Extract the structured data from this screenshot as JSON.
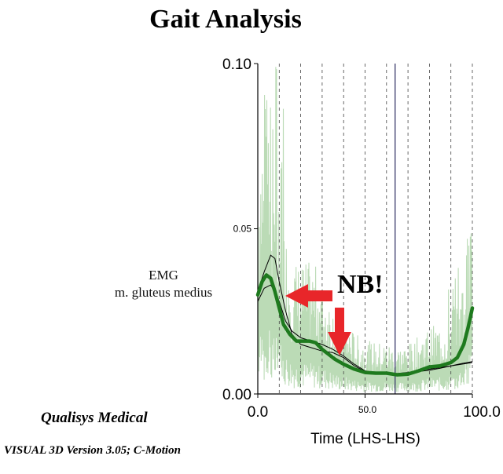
{
  "title": "Gait Analysis",
  "annotation": "NB!",
  "y_label_lines": [
    "EMG",
    "m. gluteus medius"
  ],
  "footer": {
    "line1": "Qualisys Medical",
    "line2": "VISUAL 3D Version 3.05; C-Motion"
  },
  "colors": {
    "mean": "#1e7a1e",
    "raw": "#b7d9b2",
    "reference": "#000000",
    "arrow": "#e8262a",
    "event_line": "#3a3a6a"
  },
  "chart_data": {
    "type": "line",
    "title": "Gait Analysis",
    "xlabel": "Time (LHS-LHS)",
    "ylabel": "EMG m. gluteus medius",
    "xlim": [
      0,
      100
    ],
    "ylim": [
      0,
      0.1
    ],
    "x_ticks": [
      0,
      50,
      100
    ],
    "x_tick_labels": [
      "0.0",
      "50.0",
      "100.0"
    ],
    "y_ticks": [
      0,
      0.05,
      0.1
    ],
    "y_tick_labels": [
      "0.00",
      "0.05",
      "0.10"
    ],
    "dashed_verticals": [
      10,
      20,
      30,
      40,
      50,
      60,
      70,
      80,
      90,
      100
    ],
    "event_line_x": 64,
    "series": [
      {
        "name": "mean EMG",
        "x": [
          0,
          2,
          4,
          6,
          8,
          10,
          12,
          15,
          18,
          21,
          24,
          27,
          30,
          33,
          36,
          40,
          45,
          50,
          55,
          60,
          65,
          70,
          75,
          80,
          85,
          90,
          93,
          96,
          98,
          100
        ],
        "values": [
          0.03,
          0.034,
          0.036,
          0.035,
          0.031,
          0.026,
          0.021,
          0.018,
          0.016,
          0.016,
          0.016,
          0.0155,
          0.0135,
          0.012,
          0.0105,
          0.009,
          0.0075,
          0.0065,
          0.0063,
          0.0063,
          0.0058,
          0.006,
          0.007,
          0.0082,
          0.0085,
          0.0095,
          0.011,
          0.015,
          0.02,
          0.026
        ]
      },
      {
        "name": "reference",
        "x": [
          0,
          3,
          6,
          8,
          10,
          13,
          16,
          20,
          25,
          30,
          35,
          40,
          45,
          50,
          55,
          60,
          65,
          70,
          75,
          80,
          85,
          90,
          95,
          100
        ],
        "values": [
          0.031,
          0.037,
          0.042,
          0.041,
          0.034,
          0.025,
          0.018,
          0.015,
          0.014,
          0.013,
          0.0125,
          0.011,
          0.0085,
          0.0068,
          0.0065,
          0.0062,
          0.0062,
          0.0065,
          0.007,
          0.0075,
          0.008,
          0.0085,
          0.009,
          0.0095
        ]
      },
      {
        "name": "reference lower",
        "x": [
          0,
          3,
          6,
          8,
          10,
          13,
          16,
          20,
          25,
          30,
          35,
          40,
          45,
          50,
          55,
          60,
          65,
          70,
          75,
          80,
          85,
          90,
          95,
          100
        ],
        "values": [
          0.028,
          0.032,
          0.033,
          0.031,
          0.028,
          0.022,
          0.019,
          0.017,
          0.016,
          0.015,
          0.0135,
          0.0115,
          0.009,
          0.007,
          0.0064,
          0.006,
          0.006,
          0.0064,
          0.0068,
          0.0072,
          0.0078,
          0.0085,
          0.0092,
          0.0098
        ]
      }
    ]
  }
}
